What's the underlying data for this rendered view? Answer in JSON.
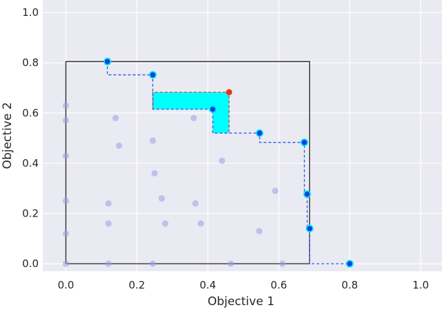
{
  "chart_data": {
    "type": "scatter",
    "title": "",
    "xlabel": "Objective 1",
    "ylabel": "Objective 2",
    "xlim": [
      -0.065,
      1.06
    ],
    "ylim": [
      -0.03,
      1.05
    ],
    "xticks": [
      0.0,
      0.2,
      0.4,
      0.6,
      0.8,
      1.0
    ],
    "yticks": [
      0.0,
      0.2,
      0.4,
      0.6,
      0.8,
      1.0
    ],
    "xtick_labels": [
      "0.0",
      "0.2",
      "0.4",
      "0.6",
      "0.8",
      "1.0"
    ],
    "ytick_labels": [
      "0.0",
      "0.2",
      "0.4",
      "0.6",
      "0.8",
      "1.0"
    ],
    "grid": true,
    "background_color": "#eaeaf2",
    "dominated_points": [
      [
        0.0,
        0.63
      ],
      [
        0.0,
        0.57
      ],
      [
        0.0,
        0.43
      ],
      [
        0.0,
        0.25
      ],
      [
        0.0,
        0.12
      ],
      [
        0.0,
        0.0
      ],
      [
        0.14,
        0.58
      ],
      [
        0.15,
        0.47
      ],
      [
        0.12,
        0.24
      ],
      [
        0.12,
        0.16
      ],
      [
        0.12,
        0.0
      ],
      [
        0.245,
        0.49
      ],
      [
        0.25,
        0.36
      ],
      [
        0.27,
        0.26
      ],
      [
        0.28,
        0.16
      ],
      [
        0.245,
        0.0
      ],
      [
        0.36,
        0.58
      ],
      [
        0.365,
        0.24
      ],
      [
        0.38,
        0.16
      ],
      [
        0.44,
        0.41
      ],
      [
        0.465,
        0.0
      ],
      [
        0.545,
        0.13
      ],
      [
        0.59,
        0.29
      ],
      [
        0.61,
        0.0
      ]
    ],
    "pareto_front": [
      [
        0.117,
        0.805
      ],
      [
        0.245,
        0.752
      ],
      [
        0.414,
        0.615
      ],
      [
        0.546,
        0.52
      ],
      [
        0.672,
        0.483
      ],
      [
        0.68,
        0.277
      ],
      [
        0.687,
        0.14
      ],
      [
        0.8,
        0.0
      ]
    ],
    "new_point": [
      0.46,
      0.683
    ],
    "reference_point": [
      0.0,
      0.0
    ],
    "hypervolume_outline": [
      [
        0.0,
        0.0
      ],
      [
        0.0,
        0.805
      ],
      [
        0.117,
        0.805
      ],
      [
        0.117,
        0.805
      ],
      [
        0.687,
        0.805
      ],
      [
        0.687,
        0.0
      ],
      [
        0.0,
        0.0
      ]
    ],
    "improvement_region": {
      "x0": 0.245,
      "x1": 0.46,
      "y0": 0.615,
      "y1": 0.683,
      "notch": {
        "x0": 0.414,
        "x1": 0.46,
        "y0": 0.52,
        "y1": 0.615
      }
    },
    "colors": {
      "dominated": "#9b9ee6",
      "pareto_face": "#0a3ed8",
      "pareto_edge": "#00e5ff",
      "new_point": "#e8321e",
      "front_line": "#2857e6",
      "outline": "#222222",
      "improvement_fill": "#00ffff"
    }
  }
}
